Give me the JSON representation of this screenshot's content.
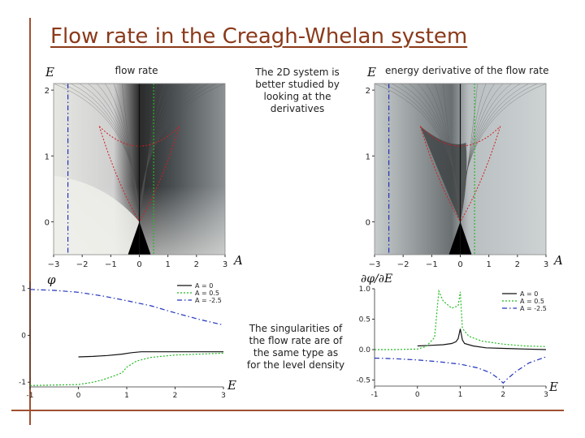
{
  "slide": {
    "title": "Flow rate in the Creagh-Whelan system",
    "caption_left": "flow rate",
    "caption_center": "The 2D system is better studied by looking at the derivatives",
    "caption_right": "energy derivative of the flow rate",
    "caption_bottom": "The singularities of the flow rate are of the same type as for the level density"
  },
  "axes": {
    "E": "E",
    "A": "A",
    "phi": "φ",
    "dphi_dE": "∂φ/∂E"
  },
  "colors": {
    "frame": "#a05030",
    "title": "#8b3a1a",
    "A0": "#111111",
    "A05": "#22bb22",
    "Am25": "#2233bb"
  },
  "chart_data": [
    {
      "type": "heatmap",
      "title": "flow rate",
      "xlabel": "A",
      "ylabel": "E",
      "xlim": [
        -3,
        3
      ],
      "ylim": [
        -0.5,
        2.1
      ],
      "xticks": [
        "-3",
        "-2",
        "-1",
        "0",
        "1",
        "2",
        "3"
      ],
      "yticks": [
        "0",
        "1",
        "2"
      ],
      "vertical_lines": [
        {
          "A": -2.5,
          "color": "#2233bb",
          "style": "dash-dot"
        },
        {
          "A": 0,
          "color": "#111111",
          "style": "solid"
        },
        {
          "A": 0.5,
          "color": "#22bb22",
          "style": "dotted"
        }
      ]
    },
    {
      "type": "heatmap",
      "title": "energy derivative of the flow rate",
      "xlabel": "A",
      "ylabel": "E",
      "xlim": [
        -3,
        3
      ],
      "ylim": [
        -0.5,
        2.1
      ],
      "xticks": [
        "-3",
        "-2",
        "-1",
        "0",
        "1",
        "2",
        "3"
      ],
      "yticks": [
        "0",
        "1",
        "2"
      ],
      "vertical_lines": [
        {
          "A": -2.5,
          "color": "#2233bb",
          "style": "dash-dot"
        },
        {
          "A": 0,
          "color": "#111111",
          "style": "solid"
        },
        {
          "A": 0.5,
          "color": "#22bb22",
          "style": "dotted"
        }
      ]
    },
    {
      "type": "line",
      "xlabel": "E",
      "ylabel": "φ",
      "xlim": [
        -1,
        3
      ],
      "ylim": [
        -1.1,
        1.15
      ],
      "xticks": [
        "-1",
        "0",
        "1",
        "2",
        "3"
      ],
      "yticks": [
        "-1",
        "0",
        "1"
      ],
      "legend_position": "top-right",
      "series": [
        {
          "name": "A = 0",
          "color": "#111111",
          "style": "solid",
          "x": [
            0,
            0.3,
            0.6,
            0.9,
            1.1,
            1.3,
            1.6,
            2,
            2.5,
            3
          ],
          "y": [
            -0.46,
            -0.45,
            -0.43,
            -0.4,
            -0.37,
            -0.35,
            -0.35,
            -0.35,
            -0.35,
            -0.35
          ]
        },
        {
          "name": "A = 0.5",
          "color": "#22bb22",
          "style": "dotted",
          "x": [
            -1,
            -0.5,
            0,
            0.3,
            0.5,
            0.7,
            0.9,
            1,
            1.2,
            1.5,
            2,
            2.5,
            3
          ],
          "y": [
            -1.07,
            -1.06,
            -1.05,
            -1.0,
            -0.95,
            -0.88,
            -0.8,
            -0.68,
            -0.55,
            -0.47,
            -0.42,
            -0.4,
            -0.38
          ]
        },
        {
          "name": "A = -2.5",
          "color": "#2233bb",
          "style": "dash-dot",
          "x": [
            -1,
            -0.5,
            0,
            0.5,
            1,
            1.5,
            2,
            2.5,
            3
          ],
          "y": [
            0.98,
            0.96,
            0.92,
            0.84,
            0.74,
            0.63,
            0.48,
            0.34,
            0.22
          ]
        }
      ]
    },
    {
      "type": "line",
      "xlabel": "E",
      "ylabel": "∂φ/∂E",
      "xlim": [
        -1,
        3
      ],
      "ylim": [
        -0.6,
        1.0
      ],
      "xticks": [
        "-1",
        "0",
        "1",
        "2",
        "3"
      ],
      "yticks": [
        "-0.5",
        "0.0",
        "0.5",
        "1.0"
      ],
      "legend_position": "top-right",
      "series": [
        {
          "name": "A = 0",
          "color": "#111111",
          "style": "solid",
          "x": [
            0,
            0.3,
            0.6,
            0.8,
            0.9,
            0.95,
            1.0,
            1.05,
            1.1,
            1.3,
            1.6,
            2,
            2.5,
            3
          ],
          "y": [
            0.06,
            0.07,
            0.08,
            0.1,
            0.13,
            0.18,
            0.34,
            0.16,
            0.1,
            0.06,
            0.03,
            0.02,
            0.01,
            0.0
          ]
        },
        {
          "name": "A = 0.5",
          "color": "#22bb22",
          "style": "dotted",
          "x": [
            -1,
            -0.5,
            0,
            0.2,
            0.4,
            0.5,
            0.6,
            0.8,
            0.95,
            1.0,
            1.05,
            1.2,
            1.5,
            2,
            2.5,
            3
          ],
          "y": [
            0.0,
            0.0,
            0.01,
            0.05,
            0.2,
            0.96,
            0.8,
            0.68,
            0.72,
            0.95,
            0.35,
            0.22,
            0.14,
            0.09,
            0.06,
            0.05
          ]
        },
        {
          "name": "A = -2.5",
          "color": "#2233bb",
          "style": "dash-dot",
          "x": [
            -1,
            -0.5,
            0,
            0.5,
            1,
            1.4,
            1.7,
            1.9,
            2.0,
            2.1,
            2.3,
            2.6,
            3
          ],
          "y": [
            -0.14,
            -0.15,
            -0.17,
            -0.2,
            -0.24,
            -0.3,
            -0.38,
            -0.48,
            -0.55,
            -0.48,
            -0.36,
            -0.22,
            -0.12
          ]
        }
      ]
    }
  ]
}
